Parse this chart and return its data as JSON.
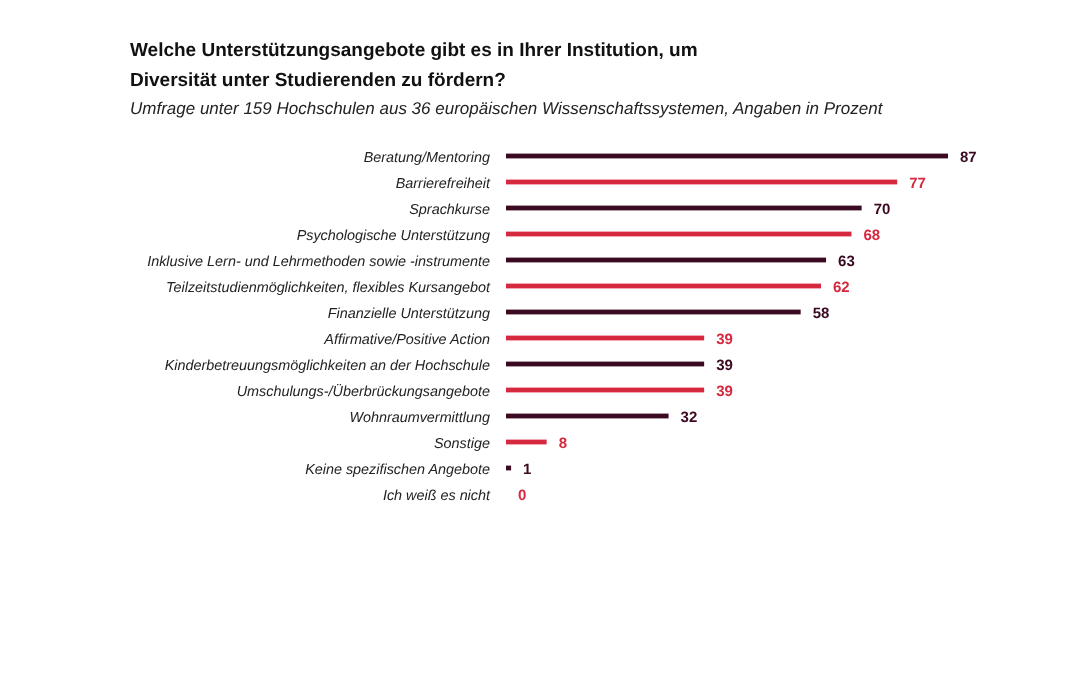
{
  "chart_data": {
    "type": "bar",
    "orientation": "horizontal",
    "title": "Welche Unterstützungsangebote gibt es in Ihrer Institution, um\nDiversität unter Studierenden zu fördern?",
    "subtitle": "Umfrage unter 159 Hochschulen aus 36 europäischen Wissenschaftssystemen, Angaben in Prozent",
    "categories": [
      "Beratung/Mentoring",
      "Barrierefreiheit",
      "Sprachkurse",
      "Psychologische Unterstützung",
      "Inklusive Lern- und Lehrmethoden sowie -instrumente",
      "Teilzeitstudienmöglichkeiten, flexibles Kursangebot",
      "Finanzielle Unterstützung",
      "Affirmative/Positive Action",
      "Kinderbetreuungsmöglichkeiten an der Hochschule",
      "Umschulungs-/Überbrückungsangebote",
      "Wohnraumvermittlung",
      "Sonstige",
      "Keine spezifischen Angebote",
      "Ich weiß es nicht"
    ],
    "values": [
      87,
      77,
      70,
      68,
      63,
      62,
      58,
      39,
      39,
      39,
      32,
      8,
      1,
      0
    ],
    "colors": [
      "#3b0a22",
      "#d6283f",
      "#3b0a22",
      "#d6283f",
      "#3b0a22",
      "#d6283f",
      "#3b0a22",
      "#d6283f",
      "#3b0a22",
      "#d6283f",
      "#3b0a22",
      "#d6283f",
      "#3b0a22",
      "#d6283f"
    ],
    "data_labels": true
  }
}
